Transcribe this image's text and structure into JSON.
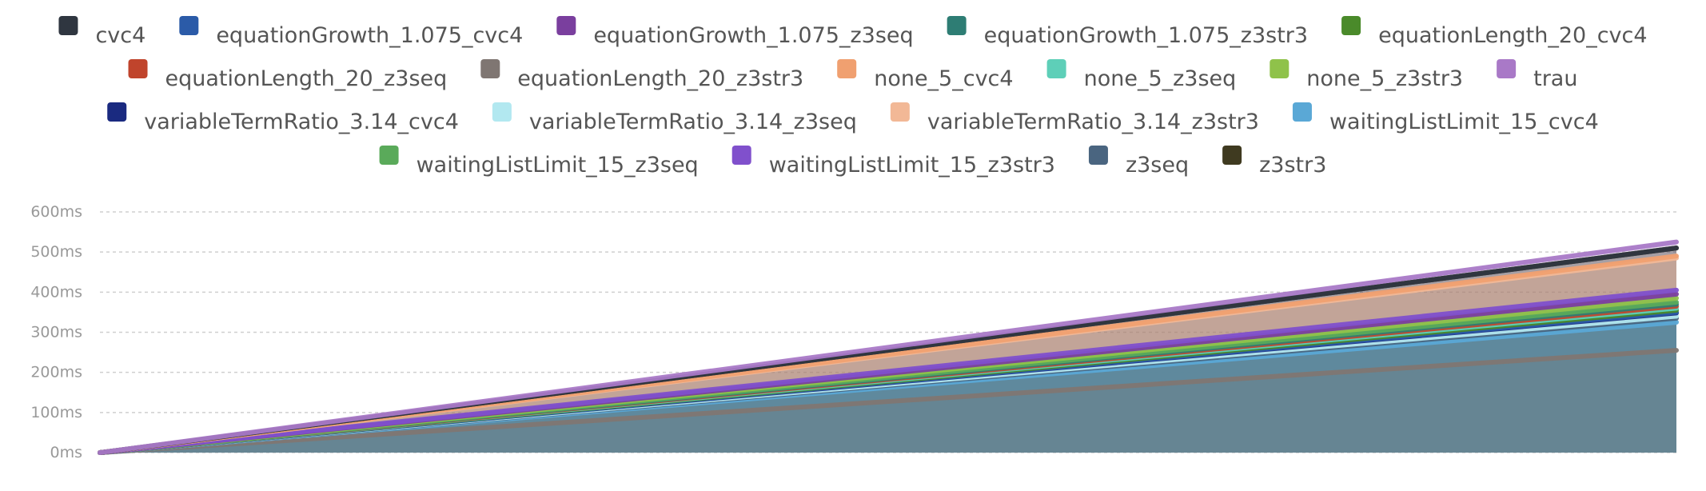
{
  "chart_data": {
    "type": "area",
    "title": "",
    "xlabel": "",
    "ylabel": "",
    "y_tick_labels": [
      "0ms",
      "100ms",
      "200ms",
      "300ms",
      "400ms",
      "500ms",
      "600ms"
    ],
    "ylim": [
      0,
      600
    ],
    "grid": true,
    "legend_position": "top",
    "x": [
      0,
      1
    ],
    "series": [
      {
        "name": "cvc4",
        "color": "#2f3640",
        "values": [
          0,
          510
        ]
      },
      {
        "name": "equationGrowth_1.075_cvc4",
        "color": "#2b5ba8",
        "values": [
          0,
          350
        ]
      },
      {
        "name": "equationGrowth_1.075_z3seq",
        "color": "#7a3f9e",
        "values": [
          0,
          395
        ]
      },
      {
        "name": "equationGrowth_1.075_z3str3",
        "color": "#2e7d74",
        "values": [
          0,
          370
        ]
      },
      {
        "name": "equationLength_20_cvc4",
        "color": "#4a8a2a",
        "values": [
          0,
          355
        ]
      },
      {
        "name": "equationLength_20_z3seq",
        "color": "#c0442c",
        "values": [
          0,
          365
        ]
      },
      {
        "name": "equationLength_20_z3str3",
        "color": "#7f7672",
        "values": [
          0,
          255
        ]
      },
      {
        "name": "none_5_cvc4",
        "color": "#f0a070",
        "values": [
          0,
          490
        ]
      },
      {
        "name": "none_5_z3seq",
        "color": "#5ecfb8",
        "values": [
          0,
          360
        ]
      },
      {
        "name": "none_5_z3str3",
        "color": "#8fc24a",
        "values": [
          0,
          385
        ]
      },
      {
        "name": "trau",
        "color": "#a979c7",
        "values": [
          0,
          525
        ]
      },
      {
        "name": "variableTermRatio_3.14_cvc4",
        "color": "#1a2a80",
        "values": [
          0,
          348
        ]
      },
      {
        "name": "variableTermRatio_3.14_z3seq",
        "color": "#b2e8f0",
        "values": [
          0,
          340
        ]
      },
      {
        "name": "variableTermRatio_3.14_z3str3",
        "color": "#f2b896",
        "values": [
          0,
          485
        ]
      },
      {
        "name": "waitingListLimit_15_cvc4",
        "color": "#5aa8d6",
        "values": [
          0,
          325
        ]
      },
      {
        "name": "waitingListLimit_15_z3seq",
        "color": "#5aaa5a",
        "values": [
          0,
          375
        ]
      },
      {
        "name": "waitingListLimit_15_z3str3",
        "color": "#8050cc",
        "values": [
          0,
          405
        ]
      },
      {
        "name": "z3seq",
        "color": "#4a6580",
        "values": [
          0,
          335
        ]
      },
      {
        "name": "z3str3",
        "color": "#3f3a20",
        "values": [
          0,
          510
        ]
      }
    ]
  }
}
